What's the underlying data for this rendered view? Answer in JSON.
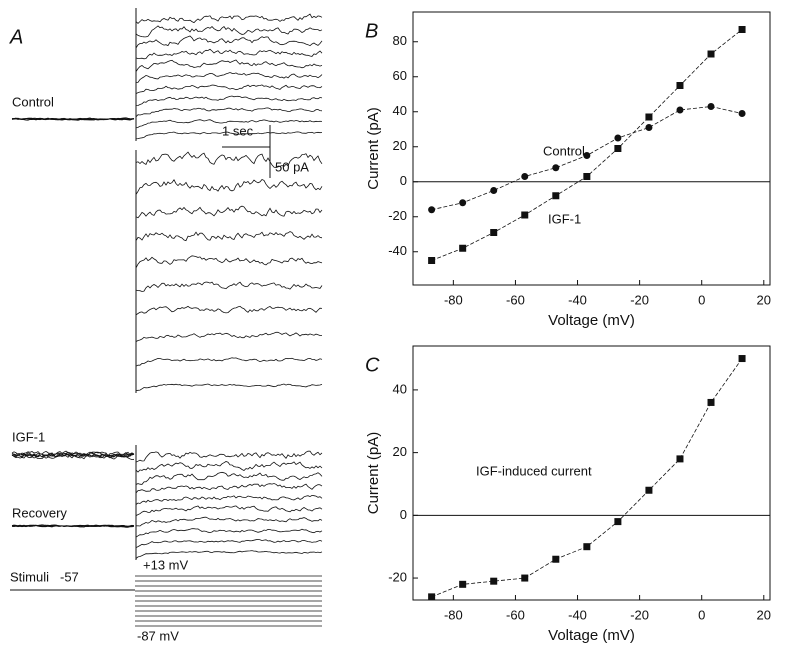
{
  "panel_a": {
    "label": "A",
    "rows": [
      "Control",
      "IGF-1",
      "Recovery",
      "Stimuli"
    ],
    "time_scale": "1 sec",
    "current_scale": "50 pA",
    "holding": "-57",
    "stim_top": "+13 mV",
    "stim_bottom": "-87 mV"
  },
  "chart_data": [
    {
      "type": "line",
      "label": "B",
      "x_label": "Voltage (mV)",
      "y_label": "Current (pA)",
      "x": [
        -87,
        -77,
        -67,
        -57,
        -47,
        -37,
        -27,
        -17,
        -7,
        3,
        13
      ],
      "series": [
        {
          "name": "Control",
          "color": "#111111",
          "marker": "circle",
          "values": [
            -16,
            -12,
            -5,
            3,
            8,
            15,
            25,
            31,
            41,
            43,
            39
          ]
        },
        {
          "name": "IGF-1",
          "color": "#111111",
          "marker": "square",
          "values": [
            -45,
            -38,
            -29,
            -19,
            -8,
            3,
            19,
            37,
            55,
            73,
            87
          ]
        }
      ],
      "xlim": [
        -93,
        22
      ],
      "ylim": [
        -59,
        97
      ],
      "xticks": [
        -80,
        -60,
        -40,
        -20,
        0,
        20
      ],
      "yticks": [
        -40,
        -20,
        0,
        20,
        40,
        60,
        80
      ],
      "reference_line": 0
    },
    {
      "type": "line",
      "label": "C",
      "x_label": "Voltage (mV)",
      "y_label": "Current (pA)",
      "x": [
        -87,
        -77,
        -67,
        -57,
        -47,
        -37,
        -27,
        -17,
        -7,
        3,
        13
      ],
      "series": [
        {
          "name": "IGF-induced current",
          "color": "#111111",
          "marker": "square",
          "values": [
            -26,
            -22,
            -21,
            -20,
            -14,
            -10,
            -2,
            8,
            18,
            36,
            50
          ]
        }
      ],
      "xlim": [
        -93,
        22
      ],
      "ylim": [
        -27,
        54
      ],
      "xticks": [
        -80,
        -60,
        -40,
        -20,
        0,
        20
      ],
      "yticks": [
        -20,
        0,
        20,
        40
      ],
      "reference_line": 0
    }
  ]
}
